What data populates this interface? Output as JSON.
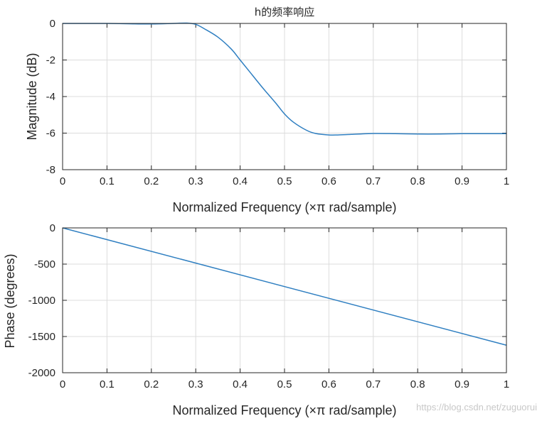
{
  "watermark": "https://blog.csdn.net/zuguorui",
  "chart_data": [
    {
      "type": "line",
      "title": "h的频率响应",
      "xlabel": "Normalized Frequency  (×π rad/sample)",
      "ylabel": "Magnitude (dB)",
      "xlim": [
        0,
        1
      ],
      "ylim": [
        -8,
        0
      ],
      "xticks": [
        0,
        0.1,
        0.2,
        0.3,
        0.4,
        0.5,
        0.6,
        0.7,
        0.8,
        0.9,
        1
      ],
      "xtick_labels": [
        "0",
        "0.1",
        "0.2",
        "0.3",
        "0.4",
        "0.5",
        "0.6",
        "0.7",
        "0.8",
        "0.9",
        "1"
      ],
      "yticks": [
        0,
        -2,
        -4,
        -6,
        -8
      ],
      "ytick_labels": [
        "0",
        "-2",
        "-4",
        "-6",
        "-8"
      ],
      "grid": true,
      "series": [
        {
          "name": "magnitude",
          "x": [
            0,
            0.05,
            0.1,
            0.15,
            0.2,
            0.25,
            0.28,
            0.3,
            0.32,
            0.35,
            0.38,
            0.4,
            0.42,
            0.45,
            0.48,
            0.5,
            0.52,
            0.55,
            0.57,
            0.6,
            0.62,
            0.65,
            0.7,
            0.75,
            0.8,
            0.85,
            0.9,
            0.95,
            1.0
          ],
          "y": [
            0,
            0,
            0,
            -0.02,
            -0.03,
            0,
            0.02,
            -0.05,
            -0.3,
            -0.75,
            -1.4,
            -2.0,
            -2.6,
            -3.5,
            -4.35,
            -4.95,
            -5.4,
            -5.85,
            -6.02,
            -6.1,
            -6.1,
            -6.07,
            -6.02,
            -6.03,
            -6.05,
            -6.05,
            -6.03,
            -6.03,
            -6.03
          ]
        }
      ]
    },
    {
      "type": "line",
      "title": "",
      "xlabel": "Normalized Frequency  (×π rad/sample)",
      "ylabel": "Phase (degrees)",
      "xlim": [
        0,
        1
      ],
      "ylim": [
        -2000,
        0
      ],
      "xticks": [
        0,
        0.1,
        0.2,
        0.3,
        0.4,
        0.5,
        0.6,
        0.7,
        0.8,
        0.9,
        1
      ],
      "xtick_labels": [
        "0",
        "0.1",
        "0.2",
        "0.3",
        "0.4",
        "0.5",
        "0.6",
        "0.7",
        "0.8",
        "0.9",
        "1"
      ],
      "yticks": [
        0,
        -500,
        -1000,
        -1500,
        -2000
      ],
      "ytick_labels": [
        "0",
        "-500",
        "-1000",
        "-1500",
        "-2000"
      ],
      "grid": true,
      "series": [
        {
          "name": "phase",
          "x": [
            0,
            1
          ],
          "y": [
            0,
            -1620
          ]
        }
      ]
    }
  ]
}
